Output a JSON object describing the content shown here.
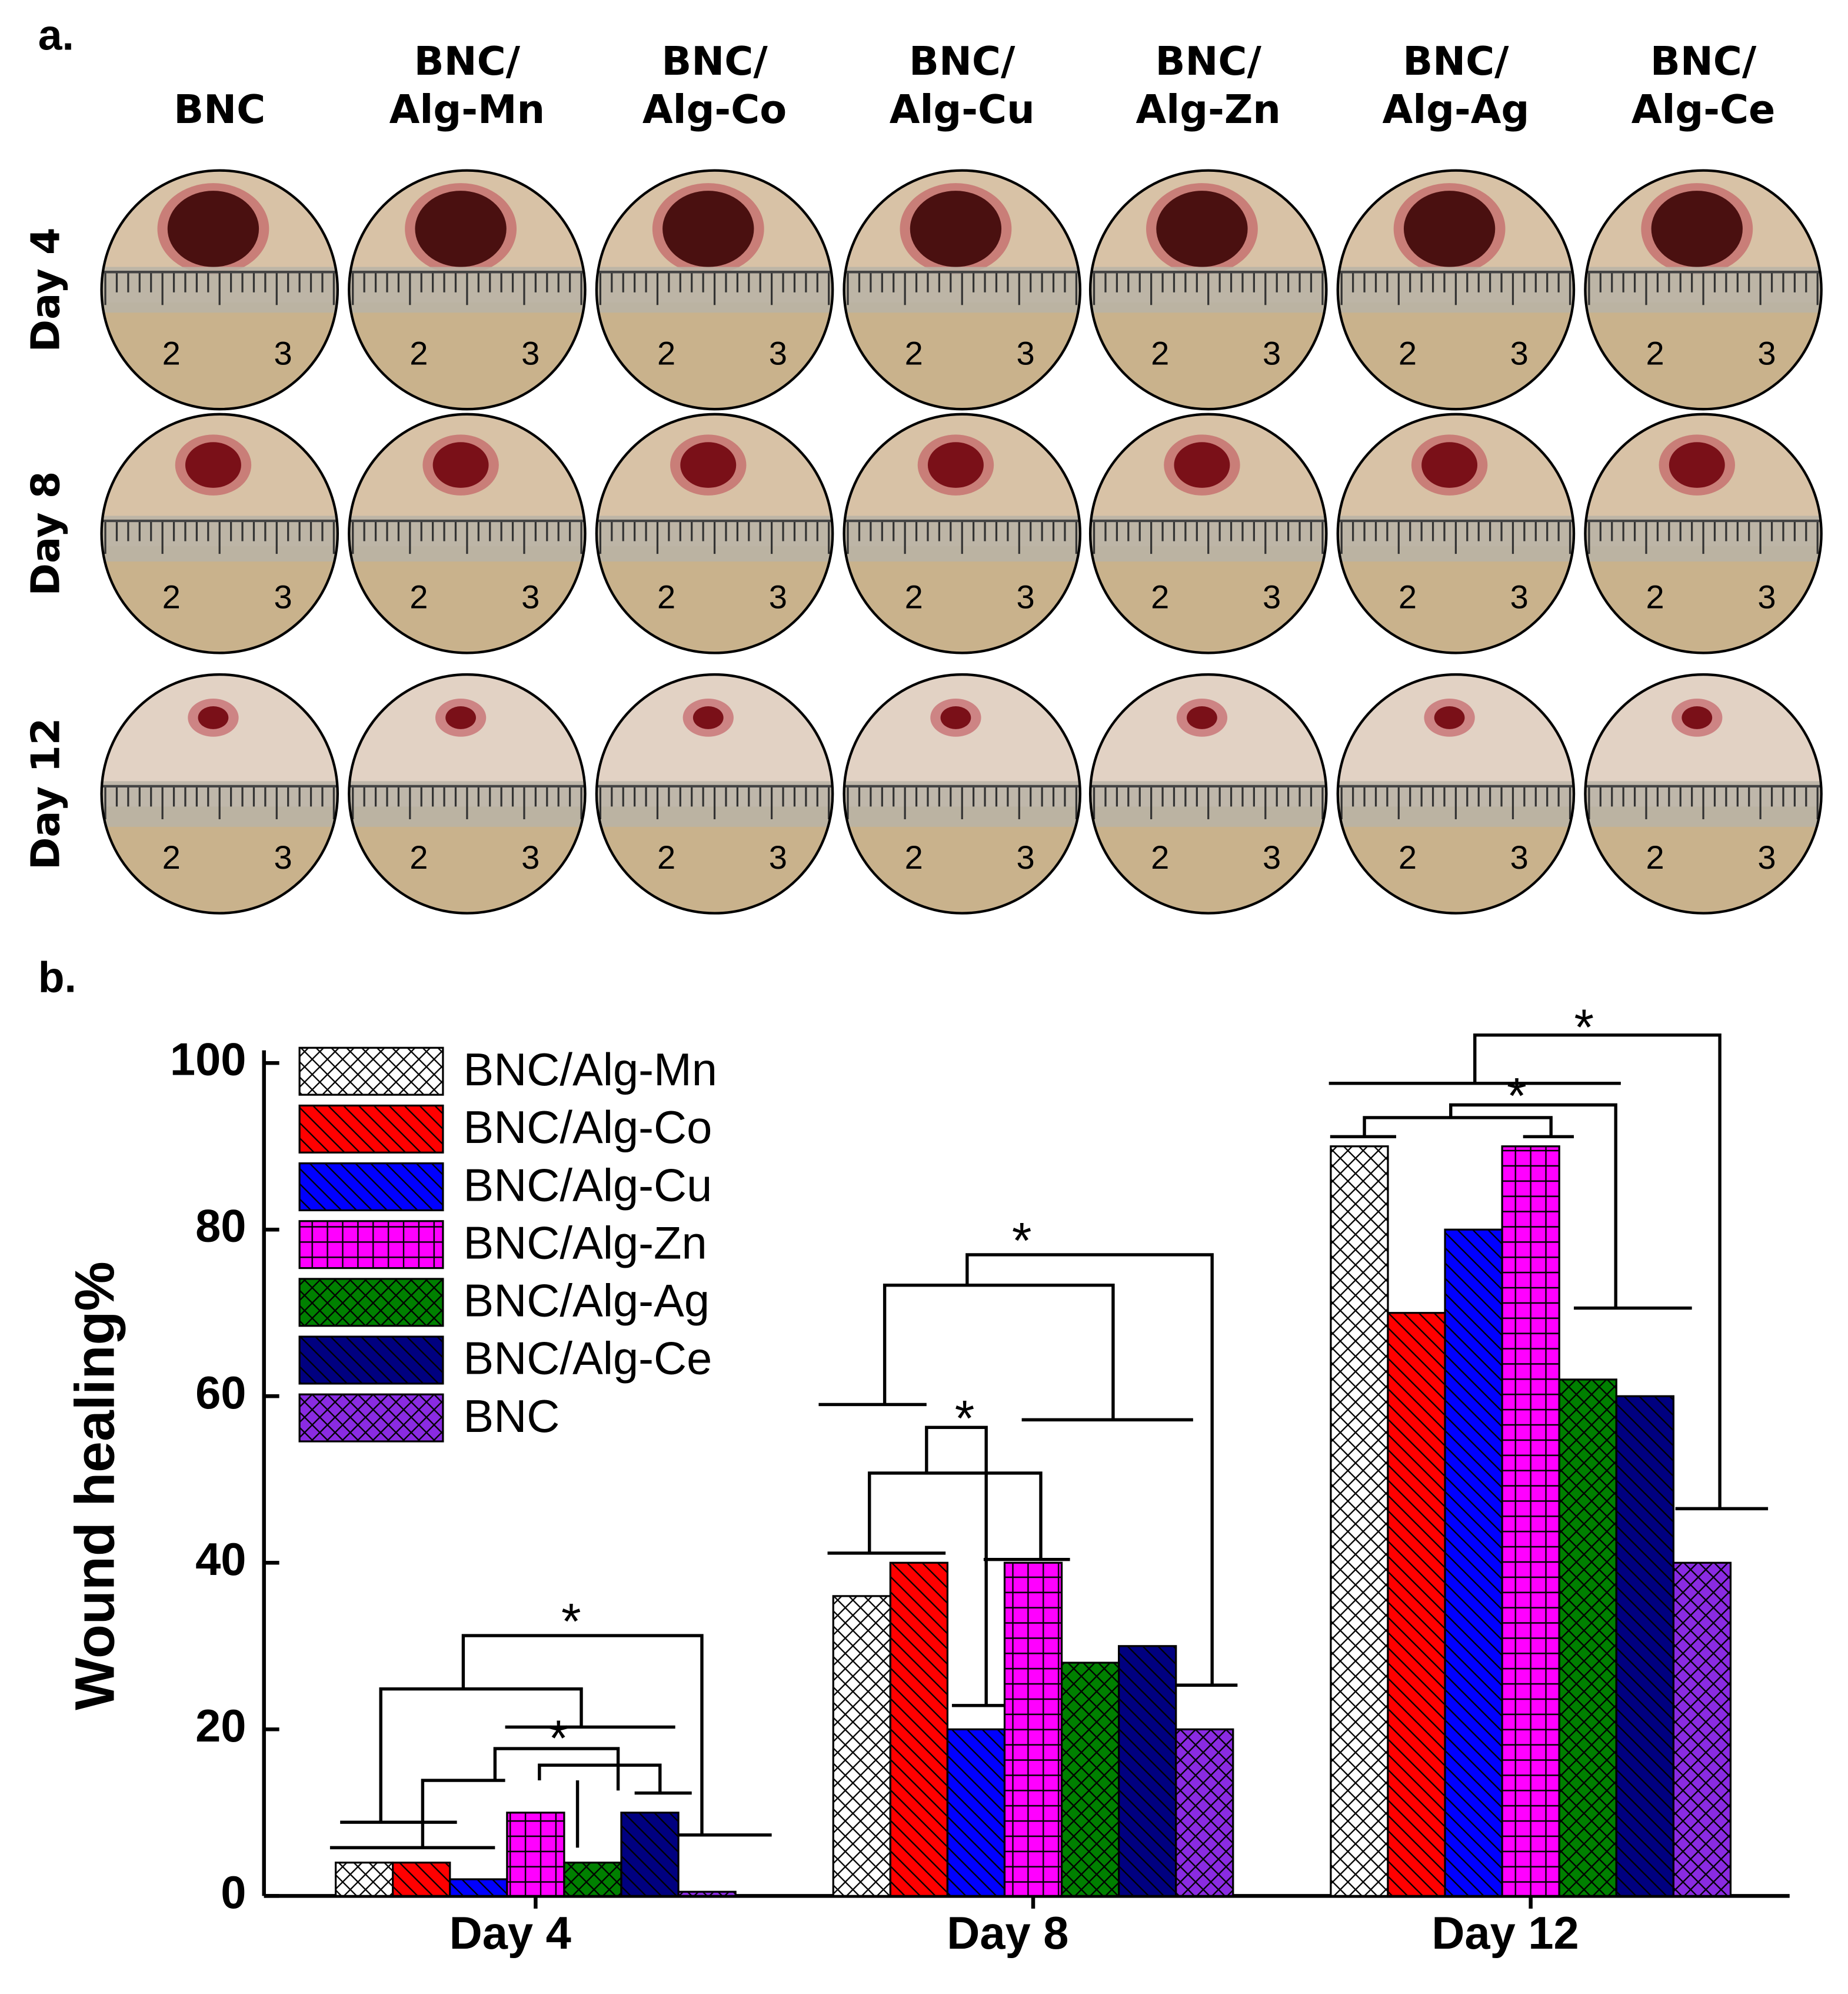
{
  "panel_a": {
    "label": "a.",
    "columns": [
      [
        "BNC"
      ],
      [
        "BNC/",
        "Alg-Mn"
      ],
      [
        "BNC/",
        "Alg-Co"
      ],
      [
        "BNC/",
        "Alg-Cu"
      ],
      [
        "BNC/",
        "Alg-Zn"
      ],
      [
        "BNC/",
        "Alg-Ag"
      ],
      [
        "BNC/",
        "Alg-Ce"
      ]
    ],
    "rows": [
      "Day 4",
      "Day 8",
      "Day 12"
    ],
    "ruler_labels": [
      "2",
      "3"
    ]
  },
  "chart_data": {
    "type": "bar",
    "label": "b.",
    "ylabel": "Wound healing%",
    "categories": [
      "Day 4",
      "Day 8",
      "Day 12"
    ],
    "series": [
      {
        "name": "BNC/Alg-Mn",
        "color": "#ffffff",
        "pattern": "crosshatch",
        "values": [
          4,
          36,
          90
        ]
      },
      {
        "name": "BNC/Alg-Co",
        "color": "#ff0000",
        "pattern": "diagonal",
        "values": [
          4,
          40,
          70
        ]
      },
      {
        "name": "BNC/Alg-Cu",
        "color": "#0000ff",
        "pattern": "diagonal",
        "values": [
          2,
          20,
          80
        ]
      },
      {
        "name": "BNC/Alg-Zn",
        "color": "#ff00ff",
        "pattern": "grid",
        "values": [
          10,
          40,
          90
        ]
      },
      {
        "name": "BNC/Alg-Ag",
        "color": "#008000",
        "pattern": "crosshatch",
        "values": [
          4,
          28,
          62
        ]
      },
      {
        "name": "BNC/Alg-Ce",
        "color": "#000080",
        "pattern": "diagonal",
        "values": [
          10,
          30,
          60
        ]
      },
      {
        "name": "BNC",
        "color": "#8a2be2",
        "pattern": "crosshatch",
        "values": [
          0.5,
          20,
          40
        ]
      }
    ],
    "ylim": [
      0,
      100
    ],
    "yticks": [
      0,
      20,
      40,
      60,
      80,
      100
    ],
    "legend": "upper left",
    "significance_mark": "*"
  }
}
